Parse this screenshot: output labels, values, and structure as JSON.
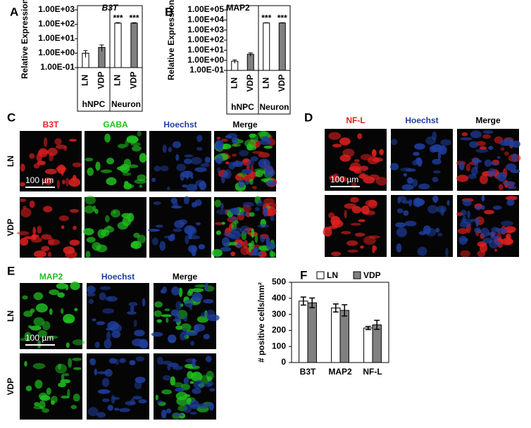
{
  "chart_data": [
    {
      "type": "bar",
      "panel_label": "A",
      "title": "B3T",
      "title_italic": true,
      "y_label": "Relative Expression",
      "log_scale": true,
      "categories": [
        "LN",
        "VDP",
        "LN",
        "VDP"
      ],
      "groups": [
        "hNPC",
        "Neuron"
      ],
      "values": [
        1,
        2.5,
        120,
        120
      ],
      "errors": [
        0.5,
        1.2,
        10,
        10
      ],
      "colors": [
        "#ffffff",
        "#808080",
        "#ffffff",
        "#808080"
      ],
      "annotations": [
        null,
        null,
        "***",
        "***"
      ],
      "ylim": [
        0.1,
        1000
      ],
      "yticks": [
        {
          "value": 0.1,
          "label": "1.00E-01"
        },
        {
          "value": 1,
          "label": "1.00E+00"
        },
        {
          "value": 10,
          "label": "1.00E+01"
        },
        {
          "value": 100,
          "label": "1.00E+02"
        },
        {
          "value": 1000,
          "label": "1.00E+03"
        }
      ]
    },
    {
      "type": "bar",
      "panel_label": "B",
      "title": "MAP2",
      "title_italic": false,
      "y_label": "Relative Expression",
      "log_scale": true,
      "categories": [
        "LN",
        "VDP",
        "LN",
        "VDP"
      ],
      "groups": [
        "hNPC",
        "Neuron"
      ],
      "values": [
        0.8,
        4,
        5000,
        5000
      ],
      "errors": [
        0.3,
        1.5,
        300,
        300
      ],
      "colors": [
        "#ffffff",
        "#808080",
        "#ffffff",
        "#808080"
      ],
      "annotations": [
        null,
        null,
        "***",
        "***"
      ],
      "ylim": [
        0.1,
        100000
      ],
      "yticks": [
        {
          "value": 0.1,
          "label": "1.00E-01"
        },
        {
          "value": 1,
          "label": "1.00E+00"
        },
        {
          "value": 10,
          "label": "1.00E+01"
        },
        {
          "value": 100,
          "label": "1.00E+02"
        },
        {
          "value": 1000,
          "label": "1.00E+03"
        },
        {
          "value": 10000,
          "label": "1.00E+04"
        },
        {
          "value": 100000,
          "label": "1.00E+05"
        }
      ]
    },
    {
      "type": "grouped_bar",
      "panel_label": "F",
      "y_label": "# positive cells/mm²",
      "categories": [
        "B3T",
        "MAP2",
        "NF-L"
      ],
      "series": [
        {
          "name": "LN",
          "color": "#ffffff",
          "values": [
            383,
            340,
            215
          ],
          "errors": [
            25,
            25,
            10
          ]
        },
        {
          "name": "VDP",
          "color": "#808080",
          "values": [
            372,
            325,
            235
          ],
          "errors": [
            30,
            35,
            28
          ]
        }
      ],
      "ylim": [
        0,
        500
      ],
      "yticks": [
        0,
        100,
        200,
        300,
        400,
        500
      ],
      "legend": "top"
    }
  ],
  "image_panels": [
    {
      "label": "C",
      "columns": [
        {
          "text": "B3T",
          "color": "#e02020"
        },
        {
          "text": "GABA",
          "color": "#20c020"
        },
        {
          "text": "Hoechst",
          "color": "#1f3f9f"
        },
        {
          "text": "Merge",
          "color": "#000000"
        }
      ],
      "rows": [
        "LN",
        "VDP"
      ],
      "scale_bar": "100 µm"
    },
    {
      "label": "D",
      "columns": [
        {
          "text": "NF-L",
          "color": "#e02020"
        },
        {
          "text": "Hoechst",
          "color": "#1f3f9f"
        },
        {
          "text": "Merge",
          "color": "#000000"
        }
      ],
      "rows": [],
      "scale_bar": "100 µm"
    },
    {
      "label": "E",
      "columns": [
        {
          "text": "MAP2",
          "color": "#20c020"
        },
        {
          "text": "Hoechst",
          "color": "#1f3f9f"
        },
        {
          "text": "Merge",
          "color": "#000000"
        }
      ],
      "rows": [
        "LN",
        "VDP"
      ],
      "scale_bar": "100 µm"
    }
  ]
}
